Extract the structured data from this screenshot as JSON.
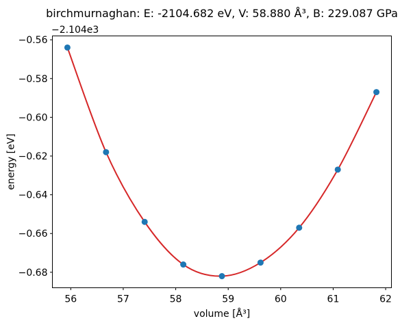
{
  "figure": {
    "background": "#ffffff"
  },
  "chart_data": {
    "type": "scatter",
    "eos_name": "birchmurnaghan",
    "title": "birchmurnaghan: E: -2104.682 eV, V: 58.880 Å³, B: 229.087 GPa",
    "xlabel": "volume [Å³]",
    "ylabel": "energy [eV]",
    "y_offset_text": "−2.104e3",
    "y_offset_value": -2104,
    "fit_results": {
      "E": "-2104.682 eV",
      "V": "58.880 Å³",
      "B": "229.087 GPa"
    },
    "series": [
      {
        "name": "calculated-points",
        "style": "markers",
        "marker": "circle",
        "marker_radius": 4.5,
        "color": "#1f77b4",
        "x": [
          55.936,
          56.672,
          57.408,
          58.144,
          58.88,
          59.616,
          60.352,
          61.088,
          61.824
        ],
        "y": [
          -0.564,
          -0.618,
          -0.654,
          -0.676,
          -0.682,
          -0.675,
          -0.657,
          -0.627,
          -0.587
        ],
        "y_absolute": [
          -2104.564,
          -2104.618,
          -2104.654,
          -2104.676,
          -2104.682,
          -2104.675,
          -2104.657,
          -2104.627,
          -2104.587
        ]
      },
      {
        "name": "birchmurnaghan-fit-curve",
        "style": "line",
        "color": "#d62728",
        "note": "smooth equation-of-state fit passing through the calculated points"
      }
    ],
    "xlim": [
      55.65,
      62.11
    ],
    "ylim": [
      -0.688,
      -0.558
    ],
    "xticks": [
      56,
      57,
      58,
      59,
      60,
      61,
      62
    ],
    "xtick_labels": [
      "56",
      "57",
      "58",
      "59",
      "60",
      "61",
      "62"
    ],
    "yticks": [
      -0.56,
      -0.58,
      -0.6,
      -0.62,
      -0.64,
      -0.66,
      -0.68
    ],
    "ytick_labels": [
      "−0.56",
      "−0.58",
      "−0.60",
      "−0.62",
      "−0.64",
      "−0.66",
      "−0.68"
    ],
    "grid": false,
    "legend": "none"
  }
}
